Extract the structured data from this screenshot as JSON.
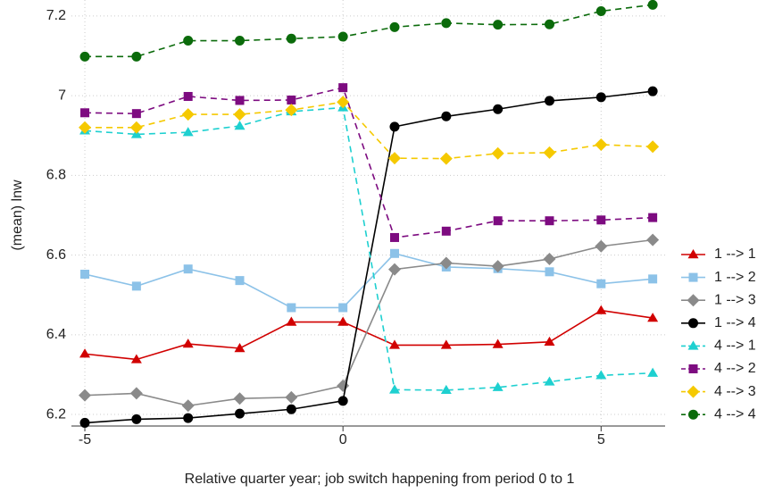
{
  "chart_data": {
    "type": "line",
    "xlabel": "Relative quarter year; job switch happening from period 0 to 1",
    "ylabel": "(mean) lnw",
    "x": [
      -5,
      -4,
      -3,
      -2,
      -1,
      0,
      1,
      2,
      3,
      4,
      5,
      6
    ],
    "xlim": [
      -5.26,
      6.24
    ],
    "xticks": [
      -5,
      0,
      5
    ],
    "ylim": [
      6.171,
      7.24
    ],
    "yticks": [
      6.2,
      6.4,
      6.6,
      6.8,
      7,
      7.2
    ],
    "grid": true,
    "legend": "right",
    "series": [
      {
        "name": "1 --> 1",
        "color": "#d10000",
        "marker": "triangle",
        "dashed": false,
        "values": [
          6.352,
          6.338,
          6.377,
          6.366,
          6.432,
          6.432,
          6.374,
          6.374,
          6.376,
          6.382,
          6.461,
          6.442
        ]
      },
      {
        "name": "1 --> 2",
        "color": "#8cc2e8",
        "marker": "square",
        "dashed": false,
        "values": [
          6.552,
          6.522,
          6.565,
          6.536,
          6.468,
          6.468,
          6.604,
          6.57,
          6.566,
          6.558,
          6.528,
          6.54
        ]
      },
      {
        "name": "1 --> 3",
        "color": "#8a8a8a",
        "marker": "diamond",
        "dashed": false,
        "values": [
          6.248,
          6.253,
          6.222,
          6.24,
          6.243,
          6.272,
          6.564,
          6.58,
          6.572,
          6.59,
          6.622,
          6.638
        ]
      },
      {
        "name": "1 --> 4",
        "color": "#000000",
        "marker": "circle",
        "dashed": false,
        "values": [
          6.179,
          6.188,
          6.191,
          6.202,
          6.213,
          6.234,
          6.922,
          6.948,
          6.966,
          6.987,
          6.996,
          7.011
        ]
      },
      {
        "name": "4 --> 1",
        "color": "#1ed0d0",
        "marker": "triangle",
        "dashed": true,
        "values": [
          6.912,
          6.903,
          6.908,
          6.924,
          6.96,
          6.97,
          6.262,
          6.261,
          6.268,
          6.282,
          6.298,
          6.304
        ]
      },
      {
        "name": "4 --> 2",
        "color": "#7d0b80",
        "marker": "square",
        "dashed": true,
        "values": [
          6.957,
          6.955,
          6.998,
          6.988,
          6.989,
          7.02,
          6.644,
          6.66,
          6.686,
          6.686,
          6.688,
          6.694
        ]
      },
      {
        "name": "4 --> 3",
        "color": "#f5c900",
        "marker": "diamond",
        "dashed": true,
        "values": [
          6.92,
          6.92,
          6.953,
          6.953,
          6.964,
          6.984,
          6.843,
          6.842,
          6.855,
          6.857,
          6.877,
          6.872
        ]
      },
      {
        "name": "4 --> 4",
        "color": "#0b6b0b",
        "marker": "circle",
        "dashed": true,
        "values": [
          7.098,
          7.098,
          7.138,
          7.138,
          7.143,
          7.148,
          7.172,
          7.182,
          7.178,
          7.179,
          7.212,
          7.228
        ]
      }
    ]
  }
}
